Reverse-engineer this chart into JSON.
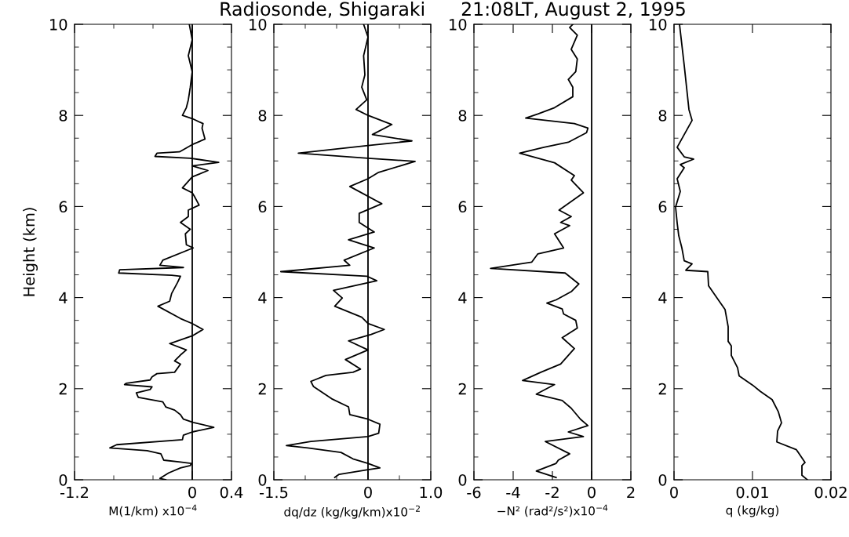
{
  "chart_data": [
    {
      "type": "line",
      "title": "Radiosonde, Shigaraki      21:08LT, August 2, 1995",
      "xlabel": "M(1/km) x10$^{−4}$",
      "ylabel": "Height (km)",
      "xlim": [
        -1.2,
        0.4
      ],
      "xticks": [
        -1.2,
        {
          "value": -0.8,
          "label": null
        },
        {
          "value": -0.4,
          "label": null
        },
        0,
        0.4
      ],
      "ylim": [
        0,
        10
      ],
      "yticks": [
        0,
        {
          "value": 0.5,
          "label": null
        },
        2,
        {
          "value": 1,
          "label": null
        },
        {
          "value": 1.5,
          "label": null
        },
        {
          "value": 2.5,
          "label": null
        },
        {
          "value": 3,
          "label": null
        },
        {
          "value": 3.5,
          "label": null
        },
        4,
        {
          "value": 4.5,
          "label": null
        },
        {
          "value": 5,
          "label": null
        },
        {
          "value": 5.5,
          "label": null
        },
        6,
        {
          "value": 6.5,
          "label": null
        },
        {
          "value": 7,
          "label": null
        },
        {
          "value": 7.5,
          "label": null
        },
        8,
        {
          "value": 8.5,
          "label": null
        },
        {
          "value": 9,
          "label": null
        },
        {
          "value": 9.5,
          "label": null
        },
        10
      ],
      "ref_lines": [
        {
          "axis": "x",
          "value": 0,
          "color": "#000000"
        }
      ],
      "grid": false,
      "legend": false,
      "series": [
        {
          "color": "#000000",
          "x": [
            -0.27,
            -0.33,
            -0.24,
            -0.12,
            -0.02,
            -0.01,
            -0.12,
            -0.29,
            -0.32,
            -0.46,
            -0.84,
            -0.77,
            -0.1,
            -0.09,
            0,
            0.22,
            0.01,
            -0.09,
            -0.12,
            -0.18,
            -0.27,
            -0.3,
            -0.55,
            -0.57,
            -0.43,
            -0.41,
            -0.69,
            -0.67,
            -0.43,
            -0.41,
            -0.36,
            -0.18,
            -0.12,
            -0.18,
            -0.12,
            -0.06,
            -0.23,
            0,
            0.11,
            0,
            -0.12,
            -0.35,
            -0.23,
            -0.21,
            -0.15,
            -0.12,
            -0.21,
            -0.75,
            -0.74,
            -0.09,
            -0.33,
            -0.3,
            0.01,
            -0.06,
            -0.07,
            -0.02,
            -0.12,
            -0.04,
            -0.04,
            0.07,
            0.02,
            0,
            -0.1,
            0,
            0.16,
            0,
            0.27,
            -0.02,
            -0.38,
            -0.36,
            -0.13,
            0.01,
            0.13,
            0.1,
            0.11,
            0,
            -0.1,
            -0.06,
            -0.04,
            -0.02,
            0,
            -0.04,
            0,
            -0.03
          ],
          "values": [
            0.0,
            0.03,
            0.15,
            0.26,
            0.31,
            0.36,
            0.39,
            0.43,
            0.57,
            0.64,
            0.7,
            0.77,
            0.88,
            0.98,
            1.05,
            1.15,
            1.26,
            1.33,
            1.43,
            1.53,
            1.6,
            1.71,
            1.81,
            1.91,
            1.98,
            2.04,
            2.09,
            2.12,
            2.19,
            2.26,
            2.33,
            2.36,
            2.54,
            2.61,
            2.74,
            2.85,
            2.99,
            3.16,
            3.3,
            3.43,
            3.54,
            3.81,
            3.92,
            4.09,
            4.33,
            4.47,
            4.49,
            4.54,
            4.61,
            4.66,
            4.71,
            4.82,
            5.09,
            5.16,
            5.4,
            5.5,
            5.65,
            5.78,
            5.92,
            6.03,
            6.23,
            6.3,
            6.41,
            6.65,
            6.79,
            6.89,
            6.97,
            7.06,
            7.1,
            7.17,
            7.2,
            7.37,
            7.48,
            7.72,
            7.82,
            7.93,
            8.0,
            8.17,
            8.34,
            8.62,
            8.96,
            9.31,
            9.66,
            10.0
          ]
        }
      ]
    },
    {
      "type": "line",
      "xlabel": "dq/dz (kg/kg/km)x10$^{−2}$",
      "xlim": [
        -1.5,
        1.0
      ],
      "xticks": [
        -1.5,
        {
          "value": -1.0,
          "label": null
        },
        {
          "value": -0.5,
          "label": null
        },
        0,
        {
          "value": 0.5,
          "label": null
        },
        {
          "value": 1.0,
          "label": "1.0"
        }
      ],
      "ylim": [
        0,
        10
      ],
      "yticks": [
        0,
        {
          "value": 0.5,
          "label": null
        },
        2,
        {
          "value": 1,
          "label": null
        },
        {
          "value": 1.5,
          "label": null
        },
        {
          "value": 2.5,
          "label": null
        },
        {
          "value": 3,
          "label": null
        },
        {
          "value": 3.5,
          "label": null
        },
        4,
        {
          "value": 4.5,
          "label": null
        },
        {
          "value": 5,
          "label": null
        },
        {
          "value": 5.5,
          "label": null
        },
        6,
        {
          "value": 6.5,
          "label": null
        },
        {
          "value": 7,
          "label": null
        },
        {
          "value": 7.5,
          "label": null
        },
        8,
        {
          "value": 8.5,
          "label": null
        },
        {
          "value": 9,
          "label": null
        },
        {
          "value": 9.5,
          "label": null
        },
        10
      ],
      "ref_lines": [
        {
          "axis": "x",
          "value": 0,
          "color": "#000000"
        }
      ],
      "grid": false,
      "legend": false,
      "series": [
        {
          "color": "#000000",
          "x": [
            -0.53,
            -0.46,
            0,
            0.19,
            0,
            -0.24,
            -0.43,
            -0.96,
            -1.3,
            -0.91,
            0,
            0.17,
            0.19,
            0,
            -0.29,
            -0.31,
            -0.58,
            -0.87,
            -0.91,
            -0.67,
            -0.24,
            -0.12,
            -0.36,
            0,
            -0.31,
            0.05,
            0.26,
            0,
            -0.1,
            -0.53,
            -0.41,
            -0.55,
            0.14,
            -0.02,
            -1.39,
            -0.29,
            -0.38,
            0.1,
            -0.31,
            0.1,
            -0.14,
            -0.14,
            0.22,
            -0.29,
            0,
            0.17,
            0.75,
            0,
            -1.11,
            0,
            0.7,
            0.07,
            0.38,
            0,
            -0.19,
            -0.02,
            -0.1,
            -0.05,
            -0.07,
            0,
            -0.07
          ],
          "values": [
            0.05,
            0.12,
            0.22,
            0.26,
            0.36,
            0.46,
            0.6,
            0.7,
            0.75,
            0.84,
            0.95,
            1.02,
            1.22,
            1.33,
            1.43,
            1.6,
            1.78,
            2.05,
            2.16,
            2.29,
            2.36,
            2.43,
            2.64,
            2.85,
            3.05,
            3.19,
            3.3,
            3.43,
            3.57,
            3.81,
            3.99,
            4.16,
            4.37,
            4.47,
            4.57,
            4.71,
            4.82,
            5.09,
            5.27,
            5.44,
            5.65,
            5.85,
            6.06,
            6.44,
            6.61,
            6.75,
            6.99,
            7.06,
            7.17,
            7.34,
            7.44,
            7.58,
            7.8,
            8.0,
            8.13,
            8.34,
            8.62,
            8.89,
            9.31,
            9.72,
            10.0
          ]
        }
      ]
    },
    {
      "type": "line",
      "xlabel": "−N² (rad²/s²)x10$^{−4}$",
      "xlim": [
        -6,
        2
      ],
      "xticks": [
        -6,
        -4,
        -2,
        0,
        2
      ],
      "ylim": [
        0,
        10
      ],
      "yticks": [
        0,
        {
          "value": 0.5,
          "label": null
        },
        2,
        {
          "value": 1,
          "label": null
        },
        {
          "value": 1.5,
          "label": null
        },
        {
          "value": 2.5,
          "label": null
        },
        {
          "value": 3,
          "label": null
        },
        {
          "value": 3.5,
          "label": null
        },
        4,
        {
          "value": 4.5,
          "label": null
        },
        {
          "value": 5,
          "label": null
        },
        {
          "value": 5.5,
          "label": null
        },
        6,
        {
          "value": 6.5,
          "label": null
        },
        {
          "value": 7,
          "label": null
        },
        {
          "value": 7.5,
          "label": null
        },
        8,
        {
          "value": 8.5,
          "label": null
        },
        {
          "value": 9,
          "label": null
        },
        {
          "value": 9.5,
          "label": null
        },
        10
      ],
      "ref_lines": [
        {
          "axis": "x",
          "value": 0,
          "color": "#000000"
        }
      ],
      "grid": false,
      "legend": false,
      "series": [
        {
          "color": "#000000",
          "x": [
            -1.81,
            -2.82,
            -1.81,
            -1.7,
            -1.12,
            -2.36,
            -0.42,
            -1.19,
            -0.19,
            -0.57,
            -1.04,
            -1.5,
            -2.82,
            -1.89,
            -3.52,
            -2.59,
            -1.58,
            -0.88,
            -1.5,
            -0.73,
            -0.81,
            -1.43,
            -1.5,
            -2.28,
            -1.81,
            -1.04,
            -0.65,
            -1.35,
            -5.15,
            -3.05,
            -2.74,
            -1.43,
            -1.89,
            -1.12,
            -1.58,
            -1.04,
            -1.66,
            -0.42,
            -1.04,
            -0.88,
            -1.89,
            -3.67,
            -2.43,
            -1.19,
            -0.26,
            -0.19,
            -0.88,
            -3.36,
            -2.74,
            -1.89,
            -0.96,
            -0.96,
            -1.19,
            -0.81,
            -0.73,
            -1.04,
            -0.73,
            -1.12,
            -0.96
          ],
          "values": [
            0.05,
            0.19,
            0.36,
            0.43,
            0.57,
            0.84,
            0.95,
            1.05,
            1.19,
            1.33,
            1.57,
            1.74,
            1.88,
            2.09,
            2.18,
            2.36,
            2.54,
            2.88,
            3.12,
            3.33,
            3.5,
            3.64,
            3.75,
            3.88,
            3.95,
            4.13,
            4.3,
            4.54,
            4.64,
            4.78,
            4.96,
            5.09,
            5.4,
            5.58,
            5.65,
            5.78,
            5.92,
            6.3,
            6.58,
            6.68,
            6.96,
            7.17,
            7.3,
            7.41,
            7.62,
            7.72,
            7.82,
            7.94,
            8.03,
            8.17,
            8.41,
            8.62,
            8.79,
            8.96,
            9.24,
            9.45,
            9.76,
            9.93,
            10.0
          ]
        }
      ]
    },
    {
      "type": "line",
      "xlabel": "q (kg/kg)",
      "xlim": [
        0,
        0.02
      ],
      "xticks": [
        0,
        0.01,
        0.02
      ],
      "ylim": [
        0,
        10
      ],
      "yticks": [
        0,
        {
          "value": 0.5,
          "label": null
        },
        2,
        {
          "value": 1,
          "label": null
        },
        {
          "value": 1.5,
          "label": null
        },
        {
          "value": 2.5,
          "label": null
        },
        {
          "value": 3,
          "label": null
        },
        {
          "value": 3.5,
          "label": null
        },
        4,
        {
          "value": 4.5,
          "label": null
        },
        {
          "value": 5,
          "label": null
        },
        {
          "value": 5.5,
          "label": null
        },
        6,
        {
          "value": 6.5,
          "label": null
        },
        {
          "value": 7,
          "label": null
        },
        {
          "value": 7.5,
          "label": null
        },
        8,
        {
          "value": 8.5,
          "label": null
        },
        {
          "value": 9,
          "label": null
        },
        {
          "value": 9.5,
          "label": null
        },
        10
      ],
      "grid": false,
      "legend": false,
      "series": [
        {
          "color": "#000000",
          "x": [
            0.017,
            0.0163,
            0.0163,
            0.0167,
            0.0156,
            0.0131,
            0.0132,
            0.0137,
            0.0133,
            0.0125,
            0.011,
            0.01,
            0.0083,
            0.0081,
            0.0073,
            0.0073,
            0.0069,
            0.0069,
            0.0065,
            0.0058,
            0.0044,
            0.0043,
            0.0015,
            0.0023,
            0.0013,
            0.001,
            0.0006,
            0.0004,
            0.0002,
            0.0008,
            0.0004,
            0.0013,
            0.0008,
            0.0025,
            0.0013,
            0.0004,
            0.0013,
            0.0023,
            0.0019,
            0.0013,
            0.0007
          ],
          "values": [
            0,
            0.1,
            0.31,
            0.38,
            0.66,
            0.83,
            1.07,
            1.25,
            1.49,
            1.76,
            1.94,
            2.08,
            2.28,
            2.46,
            2.73,
            2.94,
            3.04,
            3.36,
            3.74,
            3.91,
            4.26,
            4.57,
            4.6,
            4.74,
            4.81,
            5.09,
            5.36,
            5.64,
            5.99,
            6.33,
            6.61,
            6.85,
            6.92,
            7.04,
            7.09,
            7.3,
            7.58,
            7.89,
            8.13,
            9.1,
            10.0
          ]
        }
      ]
    }
  ]
}
